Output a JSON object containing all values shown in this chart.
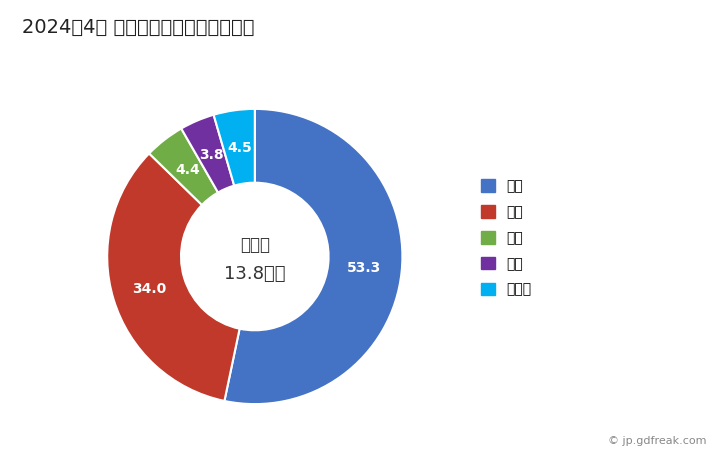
{
  "title": "2024年4月 輸出相手国のシェア（％）",
  "labels": [
    "米国",
    "英国",
    "香港",
    "中国",
    "その他"
  ],
  "values": [
    53.3,
    34.0,
    4.4,
    3.8,
    4.5
  ],
  "colors": [
    "#4472C4",
    "#C0392B",
    "#70AD47",
    "#7030A0",
    "#00B0F0"
  ],
  "center_text_line1": "総　額",
  "center_text_line2": "13.8億円",
  "watermark": "© jp.gdfreak.com",
  "title_fontsize": 14,
  "legend_fontsize": 11,
  "background_color": "#FFFFFF"
}
